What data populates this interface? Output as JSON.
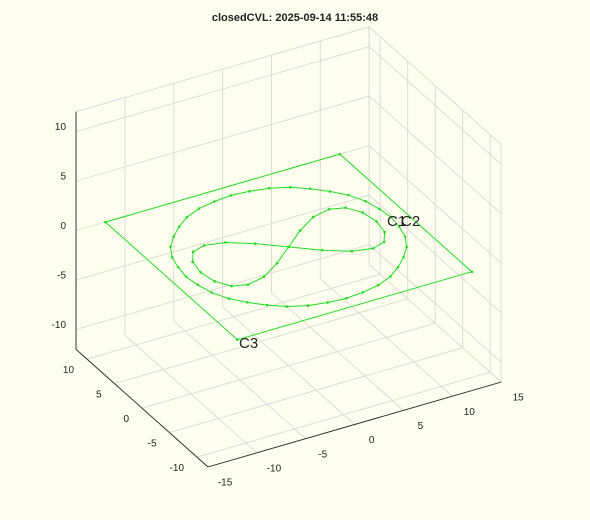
{
  "chart_data": {
    "type": "line3d",
    "title": "closedCVL: 2025-09-14 11:55:48",
    "xlim": [
      -15,
      15
    ],
    "ylim": [
      -12,
      12
    ],
    "zlim": [
      -12,
      12
    ],
    "xticks": [
      -15,
      -10,
      -5,
      0,
      5,
      10,
      15
    ],
    "yticks": [
      -10,
      -5,
      0,
      5,
      10
    ],
    "zticks": [
      -10,
      -5,
      0,
      5,
      10
    ],
    "grid": true,
    "closed": true,
    "series": [
      {
        "color": "#22dd22",
        "x": [
          -12,
          12,
          12,
          -12
        ],
        "y": [
          12,
          12,
          -12,
          -12
        ],
        "z": [
          0,
          0,
          0,
          0
        ]
      },
      {
        "color": "#22dd22",
        "x": [
          10.5,
          10.3,
          9.9,
          9.1,
          8.0,
          6.7,
          5.3,
          3.6,
          1.8,
          0,
          -1.8,
          -3.6,
          -5.3,
          -6.7,
          -8.0,
          -9.1,
          -9.9,
          -10.3,
          -10.5,
          -10.3,
          -9.9,
          -9.1,
          -8.0,
          -6.7,
          -5.3,
          -3.6,
          -1.8,
          0,
          1.8,
          3.6,
          5.3,
          6.7,
          8.0,
          9.1,
          9.9,
          10.3
        ],
        "y": [
          0,
          1.8,
          3.6,
          5.3,
          6.7,
          8.0,
          9.1,
          9.9,
          10.3,
          10.5,
          10.3,
          9.9,
          9.1,
          8.0,
          6.7,
          5.3,
          3.6,
          1.8,
          0,
          -1.8,
          -3.6,
          -5.3,
          -6.7,
          -8.0,
          -9.1,
          -9.9,
          -10.3,
          -10.5,
          -10.3,
          -9.9,
          -9.1,
          -8.0,
          -6.7,
          -5.3,
          -3.6,
          -1.8
        ],
        "z": [
          0,
          0,
          0,
          0,
          0,
          0,
          0,
          0,
          0,
          0,
          0,
          0,
          0,
          0,
          0,
          0,
          0,
          0,
          0,
          0,
          0,
          0,
          0,
          0,
          0,
          0,
          0,
          0,
          0,
          0,
          0,
          0,
          0,
          0,
          0,
          0
        ]
      },
      {
        "color": "#22dd22",
        "x": [
          0,
          2.3,
          4.5,
          6.4,
          7.8,
          8.7,
          9,
          8.7,
          7.8,
          6.4,
          4.5,
          2.3,
          0,
          -2.3,
          -4.5,
          -6.4,
          -7.8,
          -8.7,
          -9,
          -8.7,
          -7.8,
          -6.4,
          -4.5,
          -2.3
        ],
        "y": [
          0,
          2,
          3.5,
          4,
          3.5,
          2,
          0,
          -2,
          -3.5,
          -4,
          -3.5,
          -2,
          0,
          2,
          3.5,
          4,
          3.5,
          2,
          0,
          -2,
          -3.5,
          -4,
          -3.5,
          -2
        ],
        "z": [
          0,
          0,
          0,
          0,
          0,
          0,
          0,
          0,
          0,
          0,
          0,
          0,
          0,
          0,
          0,
          0,
          0,
          0,
          0,
          0,
          0,
          0,
          0,
          0
        ]
      }
    ],
    "annotations": [
      "C1",
      "C2",
      "C3"
    ]
  }
}
